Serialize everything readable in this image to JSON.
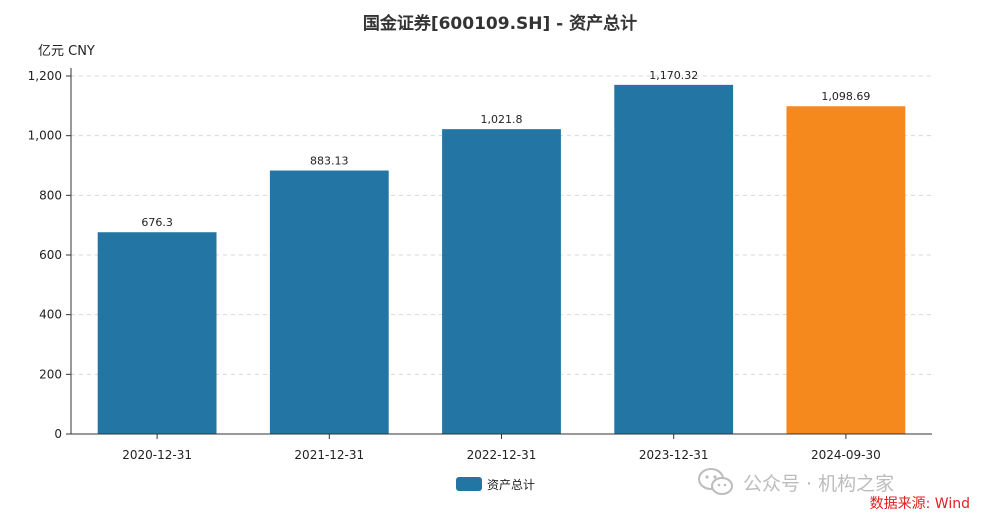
{
  "chart_data": {
    "type": "bar",
    "title": "国金证券[600109.SH] - 资产总计",
    "unit_label": "亿元  CNY",
    "categories": [
      "2020-12-31",
      "2021-12-31",
      "2022-12-31",
      "2023-12-31",
      "2024-09-30"
    ],
    "series": [
      {
        "name": "资产总计",
        "values": [
          676.3,
          883.13,
          1021.8,
          1170.32,
          1098.69
        ],
        "value_labels": [
          "676.3",
          "883.13",
          "1,021.8",
          "1,170.32",
          "1,098.69"
        ]
      }
    ],
    "bar_colors": [
      "#2376a3",
      "#2376a3",
      "#2376a3",
      "#2376a3",
      "#f5891d"
    ],
    "legend_color": "#2376a3",
    "ylim": [
      0,
      1200
    ],
    "yticks": [
      0,
      200,
      400,
      600,
      800,
      1000,
      1200
    ],
    "ytick_labels": [
      "0",
      "200",
      "400",
      "600",
      "800",
      "1,000",
      "1,200"
    ],
    "grid": true,
    "legend_position": "bottom-center",
    "xlabel": "",
    "ylabel": ""
  },
  "watermark": {
    "icon": "wechat-icon",
    "text": "公众号 · 机构之家"
  },
  "source_note": "数据来源: Wind"
}
